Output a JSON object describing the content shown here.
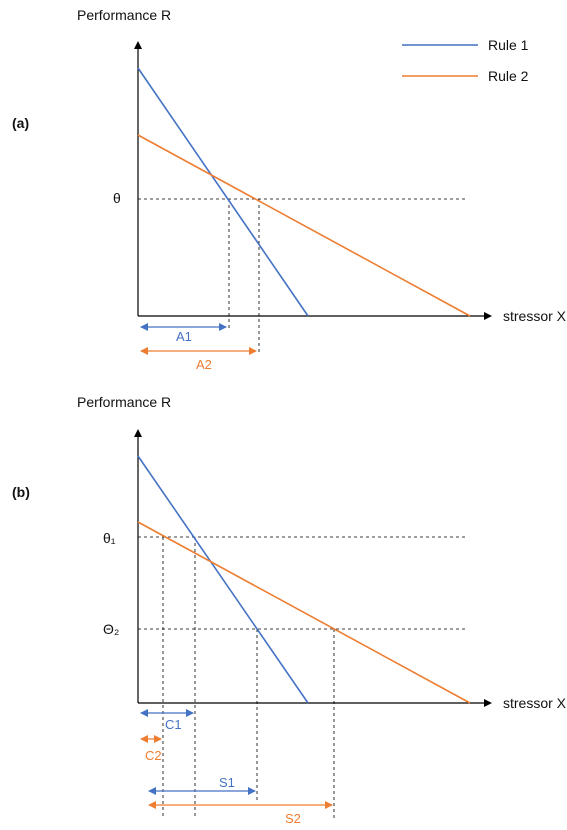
{
  "colors": {
    "rule1": "#4472C4",
    "rule2": "#ED7D31",
    "axis": "#000000",
    "guide": "#000000"
  },
  "legend": {
    "rule1": "Rule 1",
    "rule2": "Rule 2"
  },
  "panel_a": {
    "tag": "(a)",
    "y_axis_label": "Performance R",
    "x_axis_label": "stressor X",
    "threshold": "θ",
    "interval1": "A1",
    "interval2": "A2"
  },
  "panel_b": {
    "tag": "(b)",
    "y_axis_label": "Performance R",
    "x_axis_label": "stressor X",
    "threshold_high": "θ₁",
    "threshold_low": "Θ₂",
    "c1": "C1",
    "c2": "C2",
    "s1": "S1",
    "s2": "S2"
  }
}
